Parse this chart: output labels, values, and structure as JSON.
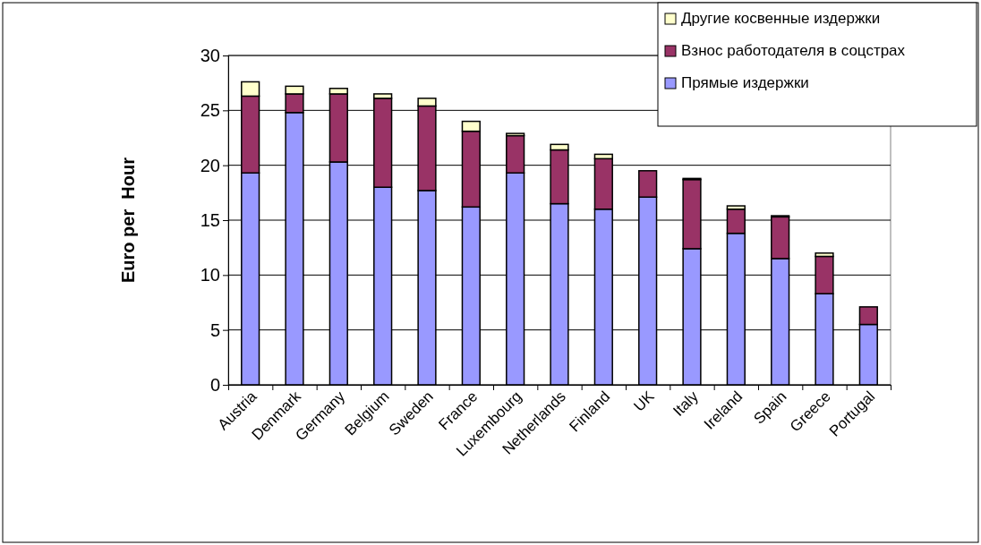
{
  "chart_data": {
    "type": "bar",
    "stacked": true,
    "ylabel": "Euro per  Hour",
    "categories": [
      "Austria",
      "Denmark",
      "Germany",
      "Belgium",
      "Sweden",
      "France",
      "Luxembourg",
      "Netherlands",
      "Finland",
      "UK",
      "Italy",
      "Ireland",
      "Spain",
      "Greece",
      "Portugal"
    ],
    "series": [
      {
        "name": "Прямые издержки",
        "color": "#9999ff",
        "values": [
          19.3,
          24.8,
          20.3,
          18.0,
          17.7,
          16.2,
          19.3,
          16.5,
          16.0,
          17.1,
          12.4,
          13.8,
          11.5,
          8.3,
          5.5
        ]
      },
      {
        "name": "Взнос работодателя в соцстрах",
        "color": "#993366",
        "values": [
          7.0,
          1.7,
          6.2,
          8.1,
          7.7,
          6.9,
          3.4,
          4.9,
          4.6,
          2.4,
          6.3,
          2.2,
          3.8,
          3.4,
          1.6
        ]
      },
      {
        "name": "Другие косвенные издержки",
        "color": "#ffffcc",
        "values": [
          1.3,
          0.7,
          0.5,
          0.4,
          0.7,
          0.9,
          0.2,
          0.5,
          0.4,
          0.0,
          0.1,
          0.3,
          0.1,
          0.3,
          0.0
        ]
      }
    ],
    "ylim": [
      0,
      30
    ],
    "yticks": [
      0,
      5,
      10,
      15,
      20,
      25,
      30
    ],
    "grid": "y",
    "legend": "top right"
  }
}
